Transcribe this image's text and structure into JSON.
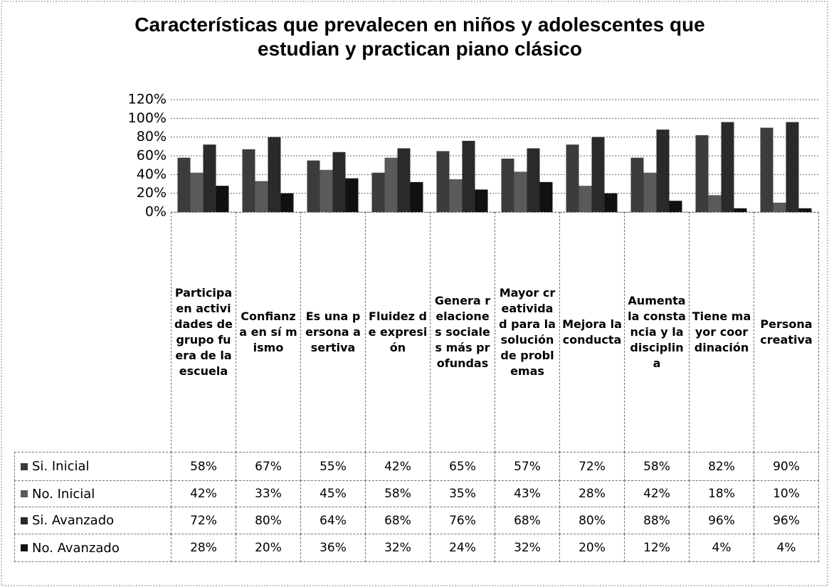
{
  "chart_data": {
    "type": "bar",
    "title": "Características que prevalecen en niños y adolescentes que estudian y practican piano clásico",
    "categories": [
      "Participa en actividades de grupo fuera de la escuela",
      "Confianza en sí mismo",
      "Es una persona asertiva",
      "Fluidez de expresión",
      "Genera relaciones sociales más profundas",
      "Mayor creatividad para la solución de problemas",
      "Mejora la conducta",
      "Aumenta la constancia y la disciplina",
      "Tiene mayor coordinación",
      "Persona creativa"
    ],
    "series": [
      {
        "name": "Si. Inicial",
        "color": "#3c3c3c",
        "values": [
          58,
          67,
          55,
          42,
          65,
          57,
          72,
          58,
          82,
          90
        ],
        "value_labels": [
          "58%",
          "67%",
          "55%",
          "42%",
          "65%",
          "57%",
          "72%",
          "58%",
          "82%",
          "90%"
        ]
      },
      {
        "name": "No. Inicial",
        "color": "#5a5a5a",
        "values": [
          42,
          33,
          45,
          58,
          35,
          43,
          28,
          42,
          18,
          10
        ],
        "value_labels": [
          "42%",
          "33%",
          "45%",
          "58%",
          "35%",
          "43%",
          "28%",
          "42%",
          "18%",
          "10%"
        ]
      },
      {
        "name": "Si. Avanzado",
        "color": "#2a2a2a",
        "values": [
          72,
          80,
          64,
          68,
          76,
          68,
          80,
          88,
          96,
          96
        ],
        "value_labels": [
          "72%",
          "80%",
          "64%",
          "68%",
          "76%",
          "68%",
          "80%",
          "88%",
          "96%",
          "96%"
        ]
      },
      {
        "name": "No. Avanzado",
        "color": "#111111",
        "values": [
          28,
          20,
          36,
          32,
          24,
          32,
          20,
          12,
          4,
          4
        ],
        "value_labels": [
          "28%",
          "20%",
          "36%",
          "32%",
          "24%",
          "32%",
          "20%",
          "12%",
          "4%",
          "4%"
        ]
      }
    ],
    "ylim": [
      0,
      120
    ],
    "yticks": [
      {
        "value": 0,
        "label": "0%"
      },
      {
        "value": 20,
        "label": "20%"
      },
      {
        "value": 40,
        "label": "40%"
      },
      {
        "value": 60,
        "label": "60%"
      },
      {
        "value": 80,
        "label": "80%"
      },
      {
        "value": 100,
        "label": "100%"
      },
      {
        "value": 120,
        "label": "120%"
      }
    ],
    "grid": true
  }
}
